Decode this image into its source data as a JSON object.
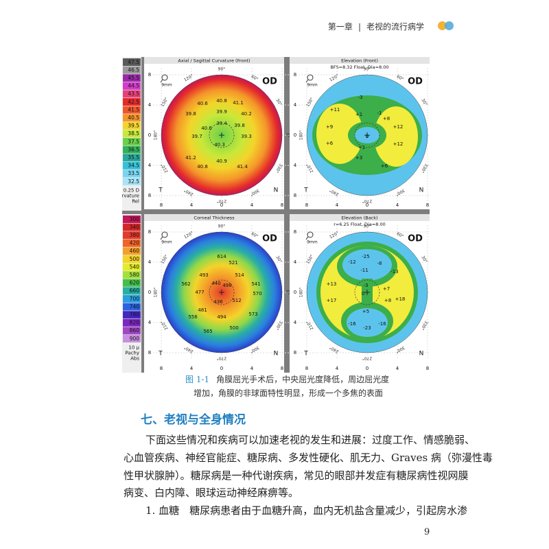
{
  "header": {
    "chapter": "第一章",
    "separator": "|",
    "title": "老视的流行病学"
  },
  "figure": {
    "legends": [
      {
        "items": [
          {
            "label": "47.5",
            "color": "#5a5a5a"
          },
          {
            "label": "46.5",
            "color": "#9a9a9a"
          },
          {
            "label": "45.5",
            "color": "#9a2aa8"
          },
          {
            "label": "44.5",
            "color": "#d23cc8"
          },
          {
            "label": "43.5",
            "color": "#e8407a"
          },
          {
            "label": "42.5",
            "color": "#e42a2a"
          },
          {
            "label": "41.5",
            "color": "#f0562a"
          },
          {
            "label": "40.5",
            "color": "#f4962a"
          },
          {
            "label": "39.5",
            "color": "#f4d42a"
          },
          {
            "label": "38.5",
            "color": "#c8e83a"
          },
          {
            "label": "37.5",
            "color": "#6cd04a"
          },
          {
            "label": "36.5",
            "color": "#34b05a"
          },
          {
            "label": "35.5",
            "color": "#2aa89a"
          },
          {
            "label": "34.5",
            "color": "#36c0d8"
          },
          {
            "label": "33.5",
            "color": "#7ad4f0"
          },
          {
            "label": "32.5",
            "color": "#a8e4f8"
          }
        ],
        "footer": [
          "0.25 D",
          "Curvature",
          "Rel"
        ]
      },
      {
        "items": [
          {
            "label": "300",
            "color": "#c0185a"
          },
          {
            "label": "340",
            "color": "#d42828"
          },
          {
            "label": "380",
            "color": "#e43a2a"
          },
          {
            "label": "420",
            "color": "#f0642a"
          },
          {
            "label": "460",
            "color": "#f4a02a"
          },
          {
            "label": "500",
            "color": "#f4d42a"
          },
          {
            "label": "540",
            "color": "#e4ec2a"
          },
          {
            "label": "580",
            "color": "#a4e03c"
          },
          {
            "label": "620",
            "color": "#44c04a"
          },
          {
            "label": "660",
            "color": "#28b0a0"
          },
          {
            "label": "700",
            "color": "#2aa0e0"
          },
          {
            "label": "740",
            "color": "#2a64e0"
          },
          {
            "label": "780",
            "color": "#4628c0"
          },
          {
            "label": "820",
            "color": "#7a28c0"
          },
          {
            "label": "860",
            "color": "#a048c4"
          },
          {
            "label": "900",
            "color": "#c890e0"
          }
        ],
        "footer": [
          "10 µ",
          "Pachy",
          "Abs"
        ]
      }
    ],
    "eye": "OD",
    "zoom": "9mm",
    "temporal": "T",
    "nasal": "N",
    "axis_ticks": [
      "8",
      "4",
      "0",
      "4",
      "8"
    ],
    "angle_labels": [
      "90°",
      "120°",
      "60°",
      "150°",
      "30°",
      "180°",
      "0°",
      "210°",
      "330°",
      "240°",
      "300°",
      "270°"
    ],
    "panels": [
      {
        "title": "Axial / Sagittal Curvature (Front)",
        "subtitle": null,
        "map": "curvature",
        "values": [
          "40.8",
          "40.6",
          "41.1",
          "39.8",
          "39.9",
          "40.2",
          "39.4",
          "39.8",
          "40.6",
          "39.7",
          "40.3",
          "39.3",
          "41.2",
          "40.9",
          "41.4",
          "40.8"
        ]
      },
      {
        "title": "Elevation (Front)",
        "subtitle": "BFS=8.32 Float, Dia=8.00",
        "map": "front",
        "values": [
          "+11",
          "-3",
          "+1",
          "-1",
          "+9",
          "+6",
          "+12",
          "+12",
          "+3",
          "+6",
          "+1",
          "0",
          "+8"
        ]
      },
      {
        "title": "Corneal Thickness",
        "subtitle": null,
        "map": "thickness",
        "values": [
          "614",
          "521",
          "493",
          "514",
          "562",
          "440",
          "498",
          "541",
          "477",
          "436",
          "512",
          "570",
          "481",
          "494",
          "573",
          "556",
          "565",
          "500"
        ]
      },
      {
        "title": "Elevation (Back)",
        "subtitle": "r=6.25 Float, Dia=8.00",
        "map": "back",
        "values": [
          "-25",
          "-12",
          "-8",
          "-11",
          "-13",
          "+13",
          "-3",
          "+7",
          "+17",
          "+8",
          "+18",
          "0",
          "-16",
          "-23",
          "-16",
          "+5"
        ]
      }
    ]
  },
  "caption": {
    "label": "图 1-1",
    "lines": [
      "角膜屈光手术后，中央屈光度降低，周边屈光度",
      "增加，角膜的非球面特性明显，形成一个多焦的表面"
    ]
  },
  "section": {
    "heading": "七、老视与全身情况"
  },
  "body": {
    "lines": [
      "下面这些情况和疾病可以加速老视的发生和进展：过度工作、情感脆弱、",
      "心血管疾病、神经官能症、糖尿病、多发性硬化、肌无力、Graves 病（弥漫性毒",
      "性甲状腺肿）。糖尿病是一种代谢疾病，常见的眼部并发症有糖尿病性视网膜",
      "病变、白内障、眼球运动神经麻痹等。",
      "1. 血糖　糖尿病患者由于血糖升高，血内无机盐含量减少，引起房水渗"
    ]
  },
  "page_number": "9"
}
